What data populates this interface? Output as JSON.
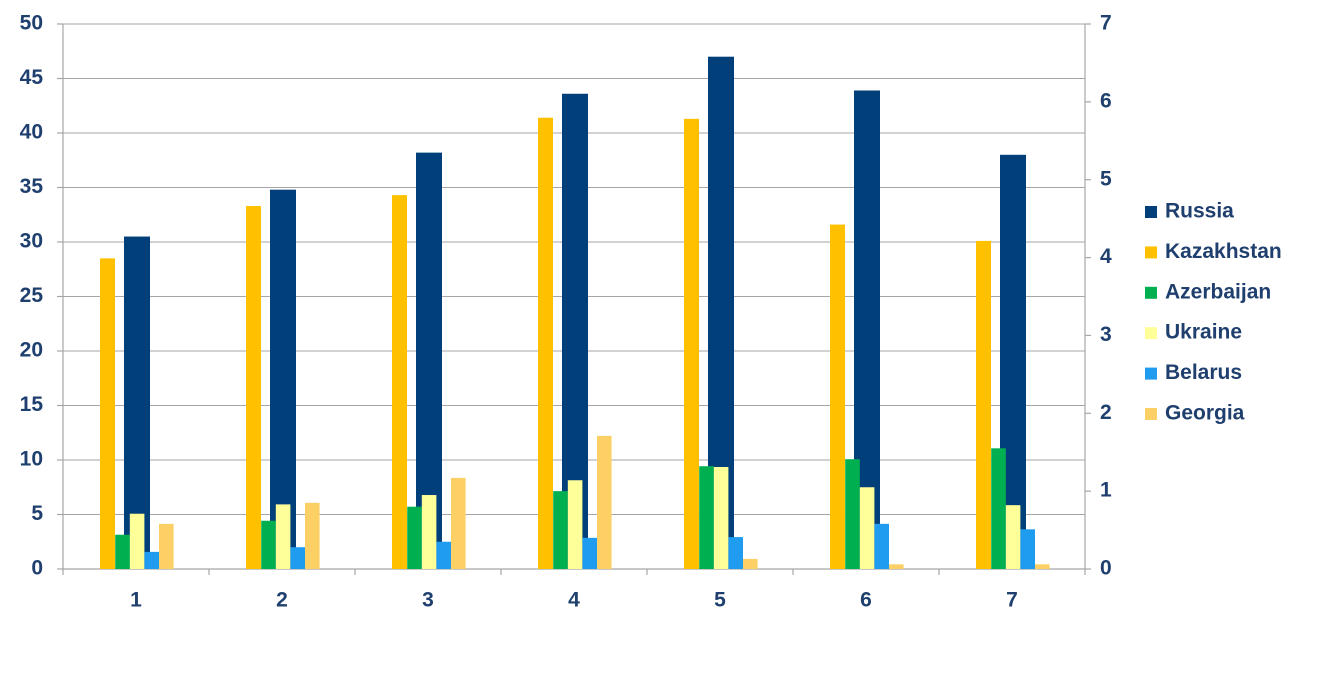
{
  "chart_data": {
    "type": "bar",
    "categories": [
      "1",
      "2",
      "3",
      "4",
      "5",
      "6",
      "7"
    ],
    "series": [
      {
        "name": "Russia",
        "color": "#003f7a",
        "values": [
          30.5,
          34.8,
          38.2,
          43.6,
          47.0,
          43.9,
          38.0
        ]
      },
      {
        "name": "Kazakhstan",
        "color": "#ffc000",
        "values": [
          28.5,
          33.3,
          34.3,
          41.4,
          41.3,
          31.6,
          30.1
        ]
      },
      {
        "name": "Azerbaijan",
        "color": "#00b050",
        "axis": "y2",
        "values": [
          0.44,
          0.62,
          0.8,
          1.0,
          1.32,
          1.41,
          1.55
        ]
      },
      {
        "name": "Ukraine",
        "color": "#ffff99",
        "axis": "y2",
        "values": [
          0.71,
          0.83,
          0.95,
          1.14,
          1.31,
          1.05,
          0.82
        ]
      },
      {
        "name": "Belarus",
        "color": "#1f9cf0",
        "axis": "y2",
        "values": [
          0.22,
          0.28,
          0.35,
          0.4,
          0.41,
          0.58,
          0.51
        ]
      },
      {
        "name": "Georgia",
        "color": "#fcd065",
        "axis": "y2",
        "values": [
          0.58,
          0.85,
          1.17,
          1.71,
          0.13,
          0.06,
          0.06
        ]
      }
    ],
    "ylim": [
      0,
      50
    ],
    "yticks": [
      0,
      5,
      10,
      15,
      20,
      25,
      30,
      35,
      40,
      45,
      50
    ],
    "y2lim": [
      0,
      7
    ],
    "y2ticks": [
      0,
      1,
      2,
      3,
      4,
      5,
      6,
      7
    ],
    "grid": true,
    "legend": "right"
  }
}
